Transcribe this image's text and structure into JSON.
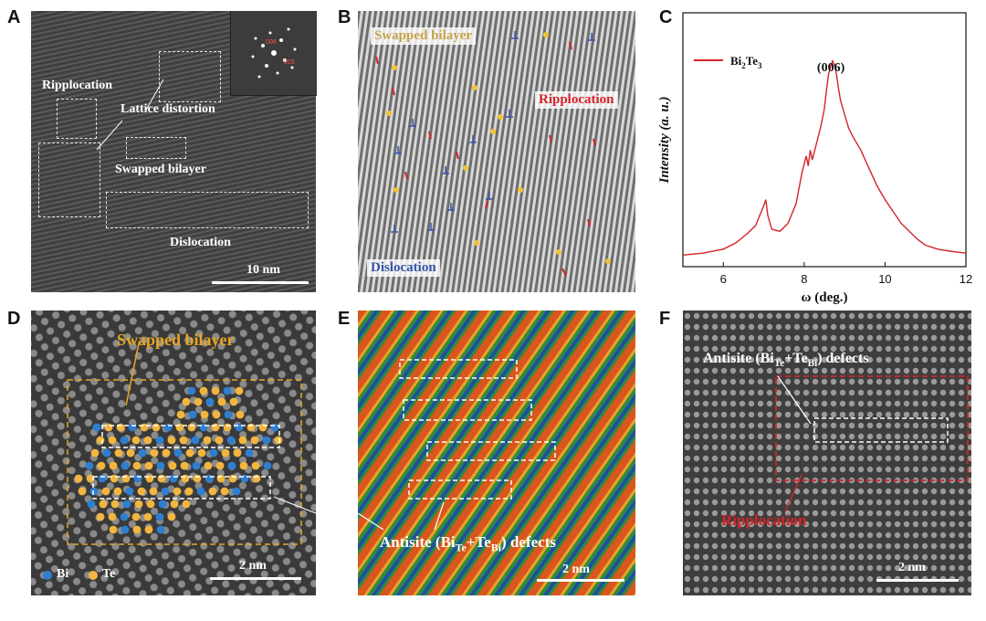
{
  "panels": {
    "a": {
      "letter": "A",
      "labels": {
        "ripplocation": "Ripplocation",
        "lattice_distortion": "Lattice distortion",
        "swapped_bilayer": "Swapped bilayer",
        "dislocation": "Dislocation"
      },
      "scale_bar": "10 nm",
      "fft_labels": [
        "006",
        "015"
      ]
    },
    "b": {
      "letter": "B",
      "labels": {
        "swapped_bilayer": "Swapped bilayer",
        "ripplocation": "Ripplocation",
        "dislocation": "Dislocation"
      },
      "colors": {
        "swapped": "#c8a24a",
        "ripplocation": "#d4242a",
        "dislocation": "#3554a8",
        "star": "#f2c230"
      }
    },
    "c": {
      "letter": "C"
    },
    "d": {
      "letter": "D",
      "labels": {
        "swapped_bilayer": "Swapped bilayer"
      },
      "legend": {
        "bi": "Bi",
        "te": "Te"
      },
      "scale_bar": "2 nm",
      "colors": {
        "bi": "#2e7fd0",
        "te": "#f2b640",
        "annotation": "#e8a824"
      }
    },
    "e": {
      "letter": "E",
      "label_main": "Antisite (Bi",
      "label_sub1": "Te",
      "label_mid": "+Te",
      "label_sub2": "Bi",
      "label_end": ") defects",
      "scale_bar": "2 nm"
    },
    "f": {
      "letter": "F",
      "label_main": "Antisite (Bi",
      "label_sub1": "Te",
      "label_mid": "+Te",
      "label_sub2": "Bi",
      "label_end": ") defects",
      "ripplocation": "Ripplocation",
      "scale_bar": "2 nm",
      "colors": {
        "ripplocation": "#d4242a"
      }
    }
  },
  "chart_data": {
    "type": "line",
    "title": "",
    "xlabel": "ω (deg.)",
    "ylabel": "Intensity (a. u.)",
    "xlim": [
      5,
      12
    ],
    "xticks": [
      6,
      8,
      10,
      12
    ],
    "legend": {
      "name": "Bi2Te3",
      "position": "top-left"
    },
    "annotation": {
      "text": "(006)",
      "x": 8.75
    },
    "series": [
      {
        "name": "Bi2Te3",
        "color": "#d4242a",
        "x": [
          5.0,
          5.5,
          6.0,
          6.3,
          6.6,
          6.8,
          6.9,
          7.0,
          7.05,
          7.1,
          7.2,
          7.4,
          7.6,
          7.8,
          7.95,
          8.05,
          8.1,
          8.15,
          8.2,
          8.3,
          8.4,
          8.5,
          8.55,
          8.6,
          8.65,
          8.7,
          8.75,
          8.8,
          8.85,
          8.9,
          9.0,
          9.1,
          9.2,
          9.4,
          9.6,
          9.8,
          10.0,
          10.2,
          10.4,
          10.6,
          10.8,
          11.0,
          11.3,
          11.6,
          12.0
        ],
        "y": [
          0.02,
          0.03,
          0.05,
          0.08,
          0.13,
          0.17,
          0.22,
          0.27,
          0.3,
          0.22,
          0.15,
          0.14,
          0.18,
          0.28,
          0.44,
          0.52,
          0.47,
          0.55,
          0.5,
          0.58,
          0.66,
          0.76,
          0.85,
          0.93,
          0.97,
          1.0,
          0.98,
          0.93,
          0.86,
          0.8,
          0.73,
          0.66,
          0.62,
          0.55,
          0.46,
          0.37,
          0.3,
          0.24,
          0.18,
          0.14,
          0.1,
          0.07,
          0.05,
          0.04,
          0.03
        ]
      }
    ]
  }
}
